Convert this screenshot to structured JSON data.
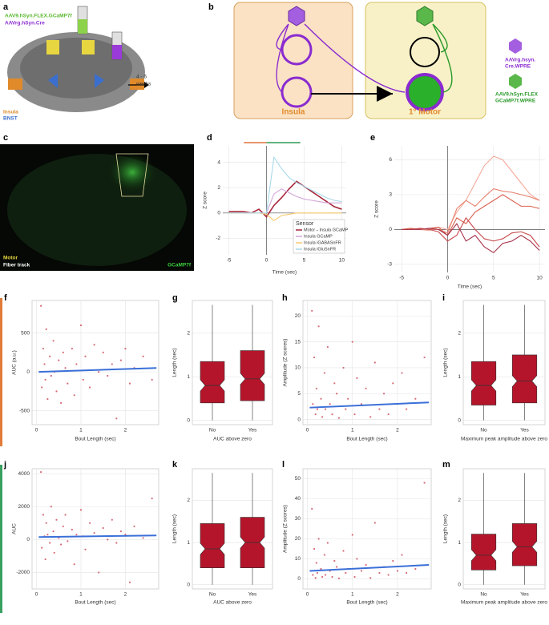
{
  "panel_a": {
    "letter": "a",
    "virus_1": "AAV9.hSyn.FLEX.GCaMP7f",
    "virus_2": "AAVrg.hSyn.Cre",
    "time_1": "4 - 6",
    "time_2": "weeks",
    "region_1": "Insula",
    "region_2": "BNST"
  },
  "panel_b": {
    "letter": "b",
    "box_1": "Insula",
    "box_2": "1° Motor",
    "virus_1": [
      "AAVrg.hsyn.",
      "Cre.WPRE"
    ],
    "virus_2": [
      "AAV9.hSyn.FLEX",
      "GCaMP7f.WPRE"
    ]
  },
  "panel_c": {
    "letter": "c",
    "label_1": "Motor",
    "label_2": "Fiber track",
    "label_3": "GCaMP7f"
  },
  "chart_data": [
    {
      "type": "line",
      "panel": "d",
      "x_label": "Time (sec)",
      "y_label": "Z score",
      "x": [
        -5,
        -4,
        -3,
        -2,
        -1,
        0,
        1,
        2,
        3,
        4,
        5,
        6,
        7,
        8,
        9,
        10
      ],
      "xlim": [
        -5.8,
        10.6
      ],
      "xticks": [
        -5,
        0,
        5,
        10
      ],
      "ylim": [
        -3.3,
        5.3
      ],
      "yticks": [
        -2,
        0,
        2,
        4
      ],
      "grid": true,
      "zero_lines": true,
      "legend": "bottom-right",
      "legend_title": "Sensor",
      "ranges": [
        {
          "color": "#e0703a",
          "x": [
            -3,
            0
          ]
        },
        {
          "color": "#2f9a55",
          "x": [
            0,
            4.5
          ]
        }
      ],
      "series": [
        {
          "name": "Motor→Insula GCaMP",
          "color": "#a8263a",
          "values": [
            0.1,
            0.1,
            0.1,
            0,
            0.3,
            -0.3,
            0.6,
            1.2,
            1.9,
            2.5,
            2.1,
            1.7,
            1.3,
            0.9,
            0.5,
            0.3
          ]
        },
        {
          "name": "Insula GCaMP",
          "color": "#d3a6d8",
          "values": [
            0,
            0,
            0,
            0,
            0,
            0,
            1.5,
            1.9,
            1.6,
            1.3,
            1.1,
            1,
            0.9,
            0.8,
            0.8,
            0.8
          ]
        },
        {
          "name": "Insula iGABASnFR",
          "color": "#f5c86a",
          "values": [
            0,
            0,
            0,
            0,
            0,
            -0.1,
            -0.6,
            -0.2,
            -0.1,
            0,
            0,
            0,
            0,
            0,
            0,
            0
          ]
        },
        {
          "name": "Insula iGluSnFR",
          "color": "#a9d9ea",
          "values": [
            0,
            0,
            0,
            0,
            0,
            0,
            4.4,
            3.5,
            2.8,
            2.4,
            2.1,
            1.8,
            1.5,
            1.2,
            1,
            0.9
          ]
        }
      ]
    },
    {
      "type": "line",
      "panel": "e",
      "x_label": "Time (sec)",
      "y_label": "Z score",
      "x": [
        -5,
        -4,
        -3,
        -2,
        -1,
        0,
        1,
        2,
        3,
        4,
        5,
        6,
        7,
        8,
        9,
        10
      ],
      "xlim": [
        -5.8,
        10.6
      ],
      "xticks": [
        -5,
        0,
        5,
        10
      ],
      "ylim": [
        -3.7,
        7.2
      ],
      "yticks": [
        -3,
        0,
        3,
        6
      ],
      "grid": true,
      "zero_lines": true,
      "series": [
        {
          "color": "#f4a99a",
          "values": [
            0,
            0.1,
            0,
            -0.1,
            0.2,
            0,
            1.5,
            2.5,
            4,
            5.5,
            6.3,
            6,
            5,
            4,
            3,
            2.5
          ]
        },
        {
          "color": "#e8806f",
          "values": [
            0,
            0,
            0.1,
            0,
            0,
            -0.3,
            1.8,
            2.5,
            2,
            2.8,
            3.5,
            3.3,
            3.2,
            3,
            2.8,
            2.5
          ]
        },
        {
          "color": "#d9604f",
          "values": [
            0,
            0.1,
            0,
            0.1,
            0.2,
            -0.5,
            1,
            0.5,
            1.5,
            2,
            2.5,
            3,
            2.5,
            2,
            2,
            1.8
          ]
        },
        {
          "color": "#c8484a",
          "values": [
            0,
            0,
            0.1,
            0,
            -0.2,
            -1,
            -0.5,
            1,
            0,
            -0.8,
            -1,
            -0.8,
            -0.3,
            -0.2,
            -0.5,
            -1.5
          ]
        },
        {
          "color": "#a8324a",
          "values": [
            0,
            0,
            0,
            0.1,
            0,
            -0.5,
            0.5,
            -1,
            -0.5,
            -1.5,
            -2,
            -1.2,
            -1,
            -0.5,
            -1,
            -1.8
          ]
        }
      ]
    },
    {
      "type": "scatter",
      "panel": "f",
      "x_label": "Bout Length (sec)",
      "y_label": "AUC (a.u.)",
      "color": "#c83a4a",
      "xlim": [
        -0.1,
        2.75
      ],
      "xticks": [
        0,
        1,
        2
      ],
      "ylim": [
        -680,
        920
      ],
      "yticks": [
        -500,
        0,
        500
      ],
      "grid": true,
      "x": [
        0.1,
        0.12,
        0.15,
        0.18,
        0.2,
        0.22,
        0.25,
        0.3,
        0.33,
        0.38,
        0.4,
        0.45,
        0.5,
        0.55,
        0.6,
        0.65,
        0.7,
        0.8,
        0.85,
        0.9,
        1.0,
        1.05,
        1.1,
        1.2,
        1.3,
        1.4,
        1.5,
        1.6,
        1.7,
        1.8,
        1.9,
        2.0,
        2.1,
        2.2,
        2.4,
        2.6
      ],
      "y": [
        850,
        -200,
        300,
        100,
        -100,
        550,
        -350,
        200,
        -50,
        400,
        0,
        -250,
        150,
        -400,
        250,
        50,
        -150,
        300,
        -300,
        100,
        600,
        -100,
        200,
        -200,
        350,
        0,
        250,
        -50,
        100,
        -600,
        150,
        300,
        -150,
        50,
        200,
        -100
      ],
      "trend": {
        "color": "#3a6fd8",
        "x": [
          0.05,
          2.7
        ],
        "y": [
          0,
          50
        ]
      }
    },
    {
      "type": "box",
      "panel": "g",
      "x_label": "AUC above zero",
      "y_label": "Length (sec)",
      "color": "#b5152b",
      "categories": [
        "No",
        "Yes"
      ],
      "ylim": [
        -0.1,
        2.75
      ],
      "yticks": [
        0,
        1,
        2
      ],
      "grid": true,
      "whisker_low": [
        0,
        0
      ],
      "q1": [
        0.4,
        0.45
      ],
      "median": [
        0.8,
        0.95
      ],
      "q3": [
        1.35,
        1.6
      ],
      "whisker_high": [
        2.65,
        2.65
      ]
    },
    {
      "type": "scatter",
      "panel": "h",
      "x_label": "Bout Length (sec)",
      "y_label": "Amplitude (Z scores)",
      "color": "#c83a4a",
      "xlim": [
        -0.1,
        2.75
      ],
      "xticks": [
        0,
        1,
        2
      ],
      "ylim": [
        -1,
        23
      ],
      "yticks": [
        0,
        5,
        10,
        15,
        20
      ],
      "grid": true,
      "x": [
        0.1,
        0.12,
        0.15,
        0.18,
        0.2,
        0.22,
        0.25,
        0.3,
        0.33,
        0.38,
        0.4,
        0.45,
        0.5,
        0.55,
        0.6,
        0.65,
        0.7,
        0.8,
        0.85,
        0.9,
        1.0,
        1.05,
        1.1,
        1.2,
        1.3,
        1.4,
        1.5,
        1.6,
        1.7,
        1.8,
        1.9,
        2.0,
        2.1,
        2.2,
        2.4,
        2.6
      ],
      "y": [
        21,
        3,
        12,
        1,
        6,
        2,
        18,
        4,
        0.5,
        9,
        2,
        14,
        3,
        1,
        7,
        5,
        0.3,
        10,
        2,
        4,
        15,
        1,
        8,
        3,
        6,
        0.5,
        11,
        2,
        5,
        1,
        7,
        3,
        9,
        2,
        4,
        12
      ],
      "trend": {
        "color": "#3a6fd8",
        "x": [
          0.05,
          2.7
        ],
        "y": [
          2.3,
          3.3
        ]
      }
    },
    {
      "type": "box",
      "panel": "i",
      "x_label": "Maximum peak amplitude above zero",
      "y_label": "Length (sec)",
      "color": "#b5152b",
      "categories": [
        "No",
        "Yes"
      ],
      "ylim": [
        -0.1,
        2.75
      ],
      "yticks": [
        0,
        1,
        2
      ],
      "grid": true,
      "whisker_low": [
        0,
        0
      ],
      "q1": [
        0.35,
        0.4
      ],
      "median": [
        0.8,
        0.9
      ],
      "q3": [
        1.35,
        1.5
      ],
      "whisker_high": [
        2.65,
        2.65
      ]
    },
    {
      "type": "scatter",
      "panel": "j",
      "x_label": "Bout Length (sec)",
      "y_label": "AUC",
      "color": "#c83a4a",
      "xlim": [
        -0.1,
        2.75
      ],
      "xticks": [
        0,
        1,
        2
      ],
      "ylim": [
        -3000,
        4300
      ],
      "yticks": [
        -2000,
        0,
        2000,
        4000
      ],
      "grid": true,
      "x": [
        0.1,
        0.12,
        0.15,
        0.18,
        0.2,
        0.22,
        0.25,
        0.3,
        0.33,
        0.38,
        0.4,
        0.45,
        0.5,
        0.55,
        0.6,
        0.65,
        0.7,
        0.8,
        0.85,
        0.9,
        1.0,
        1.05,
        1.1,
        1.2,
        1.3,
        1.4,
        1.5,
        1.6,
        1.7,
        1.8,
        1.9,
        2.0,
        2.1,
        2.2,
        2.4,
        2.6
      ],
      "y": [
        4100,
        -500,
        1500,
        200,
        -1200,
        1000,
        300,
        -200,
        2000,
        500,
        -800,
        1200,
        100,
        -300,
        800,
        1500,
        -100,
        600,
        -1500,
        300,
        1800,
        200,
        -600,
        1000,
        400,
        -2000,
        700,
        0,
        1200,
        -200,
        500,
        300,
        -2600,
        800,
        100,
        2500
      ],
      "trend": {
        "color": "#3a6fd8",
        "x": [
          0.05,
          2.7
        ],
        "y": [
          150,
          250
        ]
      }
    },
    {
      "type": "box",
      "panel": "k",
      "x_label": "AUC above zero",
      "y_label": "Length (sec)",
      "color": "#b5152b",
      "categories": [
        "No",
        "Yes"
      ],
      "ylim": [
        -0.1,
        2.75
      ],
      "yticks": [
        0,
        1,
        2
      ],
      "grid": true,
      "whisker_low": [
        0,
        0
      ],
      "q1": [
        0.4,
        0.4
      ],
      "median": [
        0.85,
        1
      ],
      "q3": [
        1.45,
        1.6
      ],
      "whisker_high": [
        2.65,
        2.65
      ]
    },
    {
      "type": "scatter",
      "panel": "l",
      "x_label": "Bout Length (sec)",
      "y_label": "Amplitude (Z scores)",
      "color": "#c83a4a",
      "xlim": [
        -0.1,
        2.75
      ],
      "xticks": [
        0,
        1,
        2
      ],
      "ylim": [
        -5,
        55
      ],
      "yticks": [
        0,
        10,
        20,
        30,
        40,
        50
      ],
      "grid": true,
      "x": [
        0.1,
        0.12,
        0.15,
        0.18,
        0.2,
        0.22,
        0.25,
        0.3,
        0.33,
        0.38,
        0.4,
        0.45,
        0.5,
        0.55,
        0.6,
        0.65,
        0.7,
        0.8,
        0.85,
        0.9,
        1.0,
        1.05,
        1.1,
        1.2,
        1.3,
        1.4,
        1.5,
        1.6,
        1.7,
        1.8,
        1.9,
        2.0,
        2.1,
        2.2,
        2.4,
        2.6
      ],
      "y": [
        35,
        2,
        15,
        0.5,
        8,
        3,
        20,
        5,
        1,
        12,
        2,
        18,
        4,
        1,
        9,
        6,
        0.3,
        14,
        3,
        5,
        22,
        1,
        10,
        4,
        7,
        0.5,
        28,
        3,
        6,
        2,
        9,
        4,
        12,
        3,
        5,
        48
      ],
      "trend": {
        "color": "#3a6fd8",
        "x": [
          0.05,
          2.7
        ],
        "y": [
          4,
          7
        ]
      }
    },
    {
      "type": "box",
      "panel": "m",
      "x_label": "Maximum peak amplitude above zero",
      "y_label": "Length (sec)",
      "color": "#b5152b",
      "categories": [
        "No",
        "Yes"
      ],
      "ylim": [
        -0.1,
        2.75
      ],
      "yticks": [
        0,
        1,
        2
      ],
      "grid": true,
      "whisker_low": [
        0,
        0
      ],
      "q1": [
        0.35,
        0.45
      ],
      "median": [
        0.7,
        0.9
      ],
      "q3": [
        1.2,
        1.45
      ],
      "whisker_high": [
        2.65,
        2.65
      ]
    }
  ]
}
